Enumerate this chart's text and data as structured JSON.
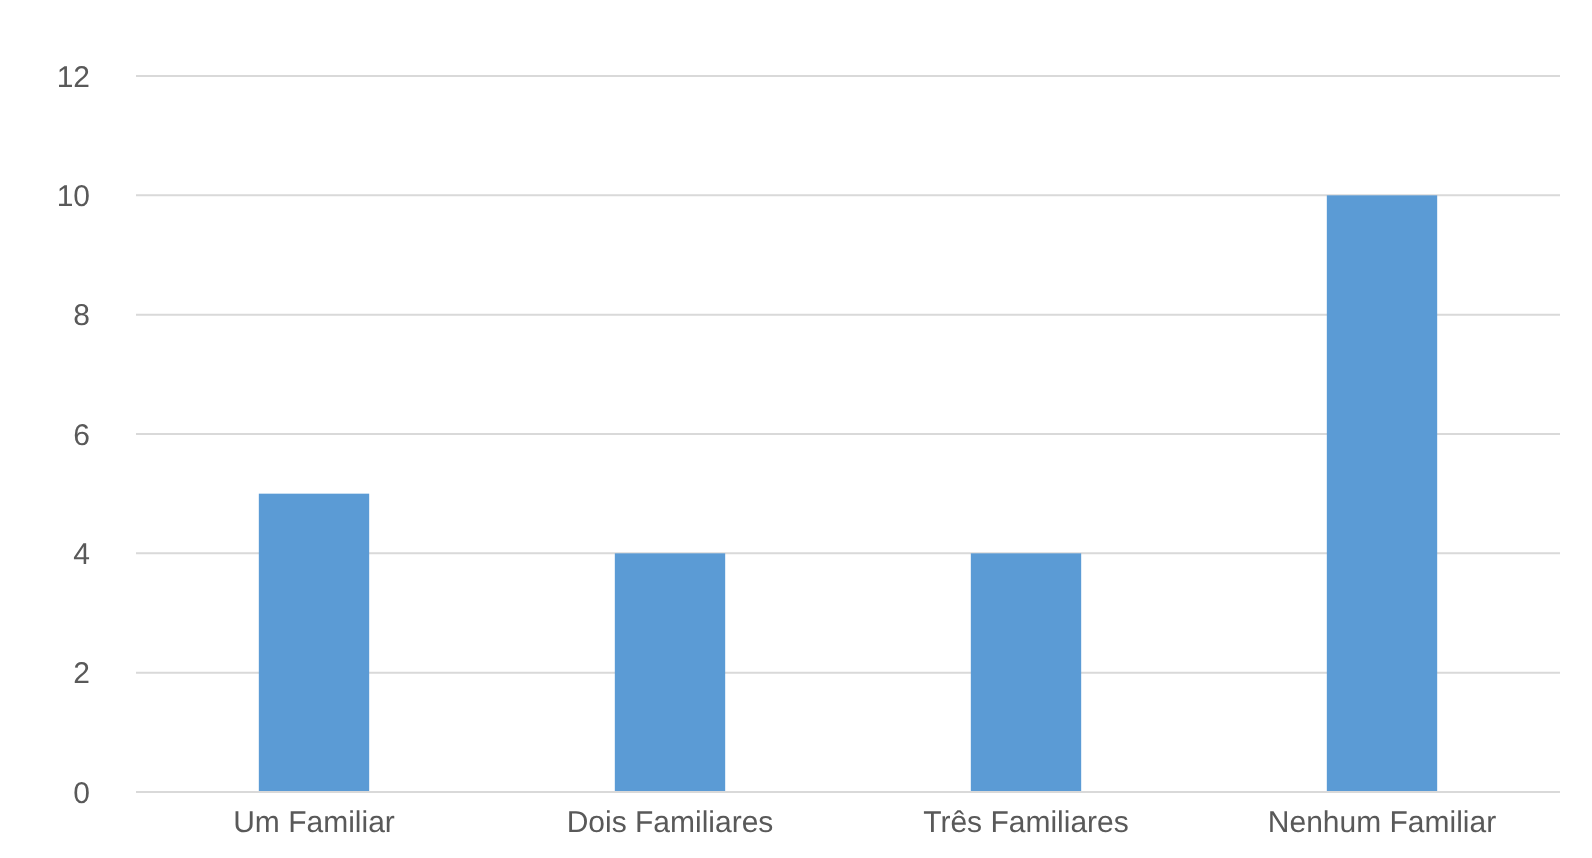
{
  "chart_data": {
    "type": "bar",
    "categories": [
      "Um Familiar",
      "Dois Familiares",
      "Três Familiares",
      "Nenhum Familiar"
    ],
    "values": [
      5,
      4,
      4,
      10
    ],
    "color": "#5b9bd5",
    "ylim": [
      0,
      12
    ],
    "yticks": [
      0,
      2,
      4,
      6,
      8,
      10,
      12
    ],
    "grid": "y"
  }
}
